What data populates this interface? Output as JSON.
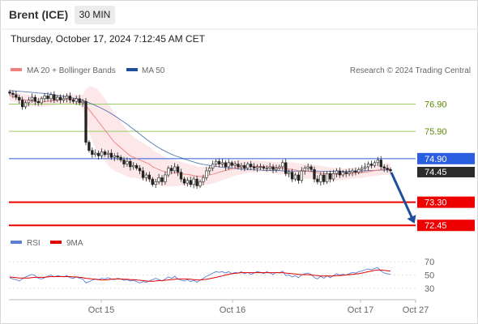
{
  "header": {
    "instrument": "Brent (ICE)",
    "timeframe": "30 MIN",
    "datetime": "Thursday, October 17, 2024 7:12:45 AM CET"
  },
  "legend": {
    "ma20": {
      "label": "MA 20 + Bollinger Bands",
      "color": "#f08080"
    },
    "ma50": {
      "label": "MA 50",
      "color": "#1f4e9c"
    },
    "rsi": {
      "label": "RSI",
      "color": "#5b7fd6"
    },
    "rsi9": {
      "label": "9MA",
      "color": "#e00000"
    }
  },
  "copyright": "Research © 2024 Trading Central",
  "chart_data": [
    {
      "type": "candlestick",
      "ylim": [
        72.1,
        77.6
      ],
      "x_labels": [
        "Oct 15",
        "Oct 16",
        "Oct 17",
        "Oct 27"
      ],
      "current_price": "74.45",
      "levels": [
        {
          "value": 76.9,
          "label": "76.90",
          "kind": "resistance"
        },
        {
          "value": 75.9,
          "label": "75.90",
          "kind": "resistance"
        },
        {
          "value": 74.9,
          "label": "74.90",
          "kind": "pivot"
        },
        {
          "value": 73.3,
          "label": "73.30",
          "kind": "support"
        },
        {
          "value": 72.45,
          "label": "72.45",
          "kind": "support"
        }
      ],
      "close": [
        77.3,
        77.25,
        77.15,
        77.05,
        76.8,
        76.95,
        77.05,
        77.15,
        77.0,
        76.95,
        77.1,
        77.2,
        77.1,
        77.25,
        77.05,
        77.15,
        77.05,
        77.1,
        77.2,
        77.05,
        77.0,
        77.1,
        76.95,
        77.0,
        75.5,
        75.2,
        75.05,
        75.1,
        75.0,
        75.15,
        75.05,
        75.1,
        74.95,
        75.0,
        74.95,
        74.85,
        74.7,
        74.8,
        74.6,
        74.65,
        74.55,
        74.45,
        74.2,
        74.3,
        74.15,
        73.95,
        74.05,
        74.2,
        74.05,
        74.3,
        74.55,
        74.45,
        74.6,
        74.4,
        74.15,
        74.0,
        74.1,
        73.95,
        74.15,
        73.9,
        74.05,
        74.2,
        74.45,
        74.55,
        74.7,
        74.8,
        74.7,
        74.75,
        74.6,
        74.75,
        74.65,
        74.7,
        74.6,
        74.65,
        74.55,
        74.7,
        74.6,
        74.55,
        74.6,
        74.6,
        74.55,
        74.55,
        74.6,
        74.5,
        74.55,
        74.6,
        74.75,
        74.35,
        74.4,
        74.15,
        74.3,
        74.1,
        74.45,
        74.55,
        74.6,
        74.5,
        74.15,
        74.05,
        74.3,
        74.05,
        74.35,
        74.15,
        74.35,
        74.45,
        74.3,
        74.4,
        74.35,
        74.4,
        74.45,
        74.4,
        74.5,
        74.55,
        74.6,
        74.7,
        74.65,
        74.75,
        74.85,
        74.6,
        74.55,
        74.5,
        74.45
      ],
      "ma20": [
        77.2,
        77.18,
        77.15,
        77.12,
        77.08,
        77.05,
        77.03,
        77.02,
        77.0,
        76.98,
        76.98,
        76.99,
        77.0,
        77.02,
        77.03,
        77.05,
        77.06,
        77.08,
        77.09,
        77.1,
        77.08,
        77.07,
        77.03,
        76.98,
        76.85,
        76.7,
        76.55,
        76.4,
        76.25,
        76.1,
        75.95,
        75.8,
        75.65,
        75.5,
        75.4,
        75.3,
        75.2,
        75.1,
        75.0,
        74.95,
        74.9,
        74.85,
        74.8,
        74.75,
        74.7,
        74.6,
        74.55,
        74.5,
        74.45,
        74.42,
        74.4,
        74.38,
        74.37,
        74.36,
        74.35,
        74.33,
        74.32,
        74.3,
        74.28,
        74.25,
        74.24,
        74.25,
        74.27,
        74.3,
        74.33,
        74.36,
        74.4,
        74.43,
        74.46,
        74.49,
        74.52,
        74.55,
        74.57,
        74.59,
        74.6,
        74.61,
        74.62,
        74.62,
        74.62,
        74.62,
        74.61,
        74.6,
        74.59,
        74.58,
        74.57,
        74.56,
        74.56,
        74.54,
        74.52,
        74.5,
        74.48,
        74.46,
        74.45,
        74.44,
        74.43,
        74.42,
        74.4,
        74.38,
        74.37,
        74.35,
        74.34,
        74.33,
        74.33,
        74.33,
        74.33,
        74.33,
        74.34,
        74.35,
        74.36,
        74.37,
        74.38,
        74.39,
        74.4,
        74.42,
        74.44,
        74.46,
        74.48,
        74.5,
        74.51,
        74.51,
        74.52
      ],
      "ma50": [
        77.4,
        77.39,
        77.38,
        77.37,
        77.36,
        77.35,
        77.34,
        77.33,
        77.32,
        77.31,
        77.3,
        77.29,
        77.28,
        77.26,
        77.24,
        77.22,
        77.2,
        77.18,
        77.16,
        77.14,
        77.12,
        77.1,
        77.07,
        77.04,
        77.0,
        76.95,
        76.9,
        76.85,
        76.8,
        76.74,
        76.68,
        76.62,
        76.55,
        76.48,
        76.4,
        76.32,
        76.24,
        76.16,
        76.07,
        75.98,
        75.89,
        75.8,
        75.71,
        75.62,
        75.53,
        75.45,
        75.37,
        75.3,
        75.23,
        75.17,
        75.11,
        75.06,
        75.01,
        74.97,
        74.93,
        74.89,
        74.85,
        74.81,
        74.78,
        74.74,
        74.71,
        74.69,
        74.67,
        74.65,
        74.63,
        74.61,
        74.6,
        74.58,
        74.57,
        74.56,
        74.55,
        74.54,
        74.53,
        74.52,
        74.51,
        74.5,
        74.5,
        74.49,
        74.48,
        74.48,
        74.47,
        74.47,
        74.47,
        74.46,
        74.46,
        74.46,
        74.45,
        74.45,
        74.45,
        74.44,
        74.44,
        74.44,
        74.44,
        74.44,
        74.44,
        74.44,
        74.44,
        74.44,
        74.43,
        74.43,
        74.43,
        74.43,
        74.43,
        74.43,
        74.43,
        74.43,
        74.43,
        74.44,
        74.44,
        74.44,
        74.44,
        74.45,
        74.45,
        74.46,
        74.46,
        74.47,
        74.47,
        74.48,
        74.48,
        74.48,
        74.48
      ],
      "band_width": [
        0.18,
        0.18,
        0.19,
        0.19,
        0.2,
        0.2,
        0.2,
        0.2,
        0.19,
        0.19,
        0.19,
        0.18,
        0.18,
        0.18,
        0.18,
        0.18,
        0.18,
        0.18,
        0.18,
        0.18,
        0.18,
        0.18,
        0.2,
        0.25,
        0.6,
        0.85,
        1.0,
        1.1,
        1.15,
        1.15,
        1.15,
        1.12,
        1.1,
        1.05,
        1.0,
        0.95,
        0.9,
        0.85,
        0.8,
        0.75,
        0.72,
        0.7,
        0.68,
        0.66,
        0.64,
        0.62,
        0.6,
        0.58,
        0.56,
        0.54,
        0.52,
        0.5,
        0.48,
        0.46,
        0.44,
        0.42,
        0.4,
        0.38,
        0.37,
        0.36,
        0.35,
        0.34,
        0.34,
        0.34,
        0.34,
        0.34,
        0.33,
        0.32,
        0.31,
        0.3,
        0.29,
        0.28,
        0.27,
        0.26,
        0.25,
        0.24,
        0.23,
        0.22,
        0.21,
        0.2,
        0.2,
        0.2,
        0.2,
        0.2,
        0.21,
        0.22,
        0.23,
        0.24,
        0.25,
        0.26,
        0.27,
        0.27,
        0.27,
        0.27,
        0.27,
        0.27,
        0.27,
        0.27,
        0.27,
        0.27,
        0.26,
        0.25,
        0.24,
        0.23,
        0.22,
        0.21,
        0.2,
        0.2,
        0.2,
        0.19,
        0.19,
        0.19,
        0.19,
        0.19,
        0.19,
        0.2,
        0.2,
        0.21,
        0.21,
        0.22,
        0.22
      ],
      "forecast": {
        "from": 74.45,
        "to": 72.45,
        "color": "#1f4e9c"
      }
    },
    {
      "type": "line",
      "name": "RSI",
      "ylim": [
        20,
        80
      ],
      "y_ticks": [
        "70",
        "50",
        "30"
      ],
      "rsi": [
        46,
        44,
        43,
        41,
        44,
        47,
        49,
        51,
        49,
        45,
        44,
        46,
        48,
        50,
        47,
        49,
        48,
        47,
        49,
        46,
        45,
        47,
        45,
        44,
        38,
        40,
        42,
        44,
        43,
        45,
        44,
        46,
        44,
        43,
        45,
        44,
        42,
        43,
        41,
        42,
        40,
        38,
        40,
        39,
        41,
        43,
        45,
        43,
        41,
        44,
        47,
        45,
        48,
        44,
        42,
        41,
        43,
        40,
        42,
        39,
        42,
        45,
        48,
        50,
        53,
        55,
        54,
        55,
        53,
        55,
        52,
        54,
        53,
        55,
        52,
        54,
        51,
        53,
        55,
        54,
        52,
        55,
        53,
        51,
        54,
        53,
        56,
        49,
        50,
        47,
        49,
        46,
        50,
        52,
        53,
        51,
        46,
        44,
        48,
        45,
        49,
        46,
        49,
        52,
        50,
        51,
        50,
        52,
        54,
        53,
        55,
        56,
        58,
        59,
        58,
        60,
        61,
        56,
        53,
        52,
        51
      ],
      "rsi_ma9": [
        47,
        46.5,
        46,
        45.5,
        45.5,
        45.5,
        45.5,
        46,
        46.5,
        46.5,
        46.5,
        46.5,
        47,
        47.5,
        47.5,
        47.5,
        47.5,
        47.5,
        47.5,
        47.5,
        47,
        47,
        46.5,
        46,
        45,
        44.5,
        44,
        43.5,
        43,
        42.5,
        42.5,
        43,
        43.5,
        44,
        44,
        44,
        43.5,
        43.5,
        43,
        43,
        42.5,
        42,
        41.5,
        41,
        40.5,
        40.5,
        41,
        41.5,
        41.5,
        42,
        42.5,
        43,
        43.5,
        44,
        44,
        44,
        44,
        43.5,
        43,
        42.5,
        42.5,
        43,
        43.5,
        44.5,
        45.5,
        46.5,
        47.5,
        48.5,
        50,
        51,
        52,
        52.5,
        53,
        53.5,
        53.5,
        53.5,
        53.5,
        53.5,
        53.5,
        53.5,
        53.5,
        53.5,
        53.5,
        53.5,
        53.5,
        53.5,
        53.5,
        53,
        52.5,
        52,
        51.5,
        51,
        50.5,
        50.5,
        50.5,
        50,
        49.5,
        49,
        48.5,
        48.5,
        48.5,
        48.5,
        48.5,
        49,
        49,
        49.5,
        50,
        50.5,
        51,
        51.5,
        52,
        53,
        54,
        55,
        56,
        57,
        57.5,
        57.5,
        57,
        56.5,
        56
      ]
    }
  ]
}
